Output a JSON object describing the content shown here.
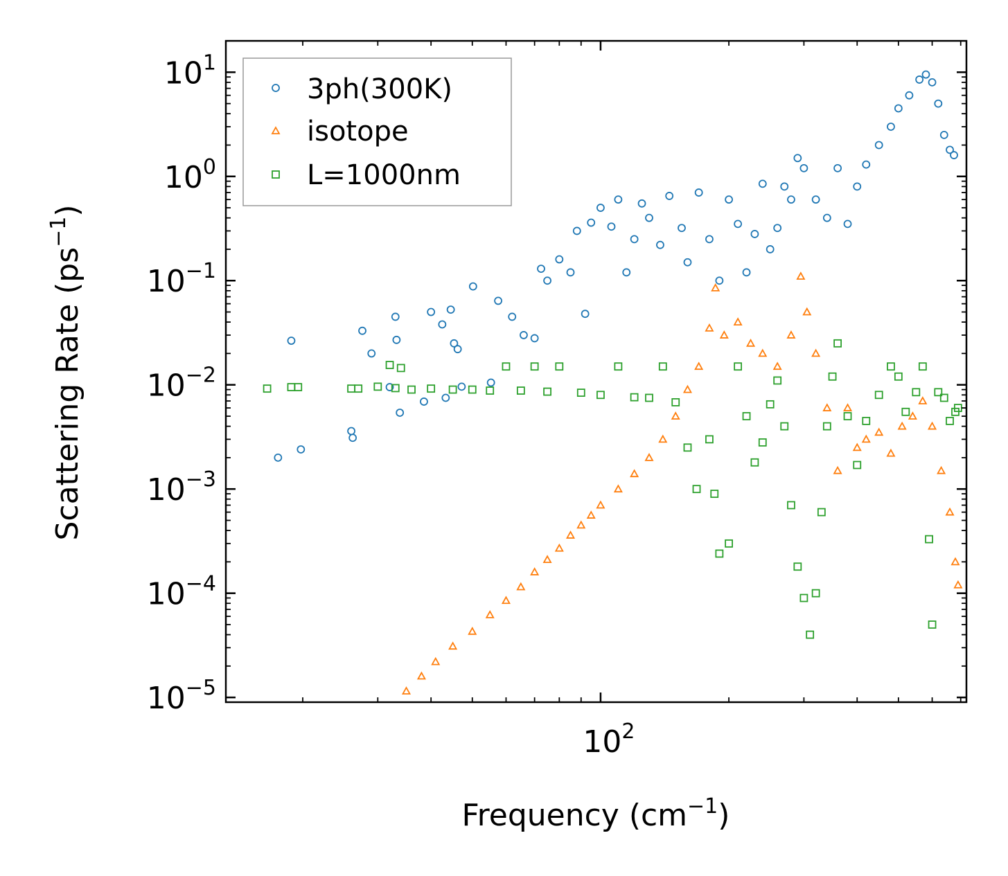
{
  "chart_data": {
    "type": "scatter",
    "title": "",
    "xlabel": "Frequency (cm",
    "xlabel_sup": "−1",
    "xlabel_end": ")",
    "ylabel": "Scattering Rate (ps",
    "ylabel_sup": "−1",
    "ylabel_end": ")",
    "xscale": "log",
    "yscale": "log",
    "xlim": [
      13.2,
      722
    ],
    "ylim": [
      9e-06,
      20
    ],
    "x_ticks": [
      {
        "value": 100,
        "base": "10",
        "exp": "2"
      }
    ],
    "y_ticks": [
      {
        "value": 10,
        "base": "10",
        "exp": "1"
      },
      {
        "value": 1,
        "base": "10",
        "exp": "0"
      },
      {
        "value": 0.1,
        "base": "10",
        "exp": "−1"
      },
      {
        "value": 0.01,
        "base": "10",
        "exp": "−2"
      },
      {
        "value": 0.001,
        "base": "10",
        "exp": "−3"
      },
      {
        "value": 0.0001,
        "base": "10",
        "exp": "−4"
      },
      {
        "value": 1e-05,
        "base": "10",
        "exp": "−5"
      }
    ],
    "legend_position": "upper-left",
    "series": [
      {
        "name": "3ph(300K)",
        "marker": "circle",
        "color": "#1f77b4",
        "points": [
          [
            17.5,
            0.002
          ],
          [
            18.8,
            0.0265
          ],
          [
            19.8,
            0.0024
          ],
          [
            26,
            0.0036
          ],
          [
            26.2,
            0.0031
          ],
          [
            27.6,
            0.033
          ],
          [
            29,
            0.02
          ],
          [
            32,
            0.0095
          ],
          [
            33,
            0.045
          ],
          [
            33.2,
            0.027
          ],
          [
            33.8,
            0.0054
          ],
          [
            38.5,
            0.0069
          ],
          [
            40,
            0.05
          ],
          [
            42.5,
            0.038
          ],
          [
            43.3,
            0.0075
          ],
          [
            44.5,
            0.0527
          ],
          [
            45.3,
            0.025
          ],
          [
            46.2,
            0.022
          ],
          [
            47.2,
            0.0096
          ],
          [
            50.2,
            0.088
          ],
          [
            55.3,
            0.0105
          ],
          [
            57.5,
            0.064
          ],
          [
            62,
            0.045
          ],
          [
            66,
            0.03
          ],
          [
            70,
            0.028
          ],
          [
            72.5,
            0.13
          ],
          [
            75,
            0.1
          ],
          [
            80,
            0.16
          ],
          [
            85,
            0.12
          ],
          [
            88,
            0.3
          ],
          [
            92,
            0.048
          ],
          [
            95,
            0.36
          ],
          [
            100,
            0.5
          ],
          [
            106,
            0.33
          ],
          [
            110,
            0.6
          ],
          [
            115,
            0.12
          ],
          [
            120,
            0.25
          ],
          [
            125,
            0.55
          ],
          [
            130,
            0.4
          ],
          [
            138,
            0.22
          ],
          [
            145,
            0.65
          ],
          [
            155,
            0.32
          ],
          [
            160,
            0.15
          ],
          [
            170,
            0.7
          ],
          [
            180,
            0.25
          ],
          [
            190,
            0.1
          ],
          [
            200,
            0.6
          ],
          [
            210,
            0.35
          ],
          [
            220,
            0.12
          ],
          [
            230,
            0.28
          ],
          [
            240,
            0.85
          ],
          [
            250,
            0.2
          ],
          [
            260,
            0.32
          ],
          [
            270,
            0.8
          ],
          [
            280,
            0.6
          ],
          [
            290,
            1.5
          ],
          [
            300,
            1.2
          ],
          [
            320,
            0.6
          ],
          [
            340,
            0.4
          ],
          [
            360,
            1.2
          ],
          [
            380,
            0.35
          ],
          [
            400,
            0.8
          ],
          [
            420,
            1.3
          ],
          [
            450,
            2
          ],
          [
            480,
            3
          ],
          [
            500,
            4.5
          ],
          [
            530,
            6
          ],
          [
            560,
            8.5
          ],
          [
            580,
            9.5
          ],
          [
            600,
            8
          ],
          [
            620,
            5
          ],
          [
            640,
            2.5
          ],
          [
            660,
            1.8
          ],
          [
            675,
            1.6
          ]
        ]
      },
      {
        "name": "isotope",
        "marker": "triangle",
        "color": "#ff7f0e",
        "points": [
          [
            35,
            1.15e-05
          ],
          [
            38,
            1.6e-05
          ],
          [
            41,
            2.2e-05
          ],
          [
            45,
            3.1e-05
          ],
          [
            50,
            4.3e-05
          ],
          [
            55,
            6.2e-05
          ],
          [
            60,
            8.5e-05
          ],
          [
            65,
            0.000115
          ],
          [
            70,
            0.00016
          ],
          [
            75,
            0.00021
          ],
          [
            80,
            0.00027
          ],
          [
            85,
            0.00036
          ],
          [
            90,
            0.00045
          ],
          [
            95,
            0.00056
          ],
          [
            100,
            0.0007
          ],
          [
            110,
            0.001
          ],
          [
            120,
            0.0014
          ],
          [
            130,
            0.002
          ],
          [
            140,
            0.003
          ],
          [
            150,
            0.005
          ],
          [
            160,
            0.009
          ],
          [
            170,
            0.015
          ],
          [
            180,
            0.035
          ],
          [
            186,
            0.085
          ],
          [
            195,
            0.03
          ],
          [
            210,
            0.04
          ],
          [
            225,
            0.025
          ],
          [
            240,
            0.02
          ],
          [
            260,
            0.015
          ],
          [
            280,
            0.03
          ],
          [
            295,
            0.11
          ],
          [
            305,
            0.05
          ],
          [
            320,
            0.02
          ],
          [
            340,
            0.006
          ],
          [
            360,
            0.0015
          ],
          [
            380,
            0.006
          ],
          [
            400,
            0.0025
          ],
          [
            420,
            0.003
          ],
          [
            450,
            0.0035
          ],
          [
            480,
            0.0022
          ],
          [
            510,
            0.004
          ],
          [
            540,
            0.005
          ],
          [
            570,
            0.007
          ],
          [
            600,
            0.004
          ],
          [
            630,
            0.0015
          ],
          [
            660,
            0.0006
          ],
          [
            680,
            0.0002
          ],
          [
            690,
            0.00012
          ]
        ]
      },
      {
        "name": "L=1000nm",
        "marker": "square",
        "color": "#2ca02c",
        "points": [
          [
            16.5,
            0.0092
          ],
          [
            18.8,
            0.0095
          ],
          [
            19.5,
            0.0095
          ],
          [
            26,
            0.0092
          ],
          [
            27,
            0.0092
          ],
          [
            30,
            0.0096
          ],
          [
            32,
            0.0155
          ],
          [
            33,
            0.0093
          ],
          [
            34,
            0.0145
          ],
          [
            36,
            0.009
          ],
          [
            40,
            0.0092
          ],
          [
            45,
            0.009
          ],
          [
            50,
            0.009
          ],
          [
            55,
            0.0088
          ],
          [
            60,
            0.015
          ],
          [
            65,
            0.0088
          ],
          [
            70,
            0.015
          ],
          [
            75,
            0.0086
          ],
          [
            80,
            0.015
          ],
          [
            90,
            0.0084
          ],
          [
            100,
            0.008
          ],
          [
            110,
            0.015
          ],
          [
            120,
            0.0076
          ],
          [
            130,
            0.0075
          ],
          [
            140,
            0.015
          ],
          [
            150,
            0.0068
          ],
          [
            160,
            0.0025
          ],
          [
            168,
            0.001
          ],
          [
            180,
            0.003
          ],
          [
            185,
            0.0009
          ],
          [
            190,
            0.00024
          ],
          [
            200,
            0.0003
          ],
          [
            210,
            0.015
          ],
          [
            220,
            0.005
          ],
          [
            230,
            0.0018
          ],
          [
            240,
            0.0028
          ],
          [
            250,
            0.0065
          ],
          [
            260,
            0.011
          ],
          [
            270,
            0.004
          ],
          [
            280,
            0.0007
          ],
          [
            290,
            0.00018
          ],
          [
            300,
            9e-05
          ],
          [
            310,
            4e-05
          ],
          [
            320,
            0.0001
          ],
          [
            330,
            0.0006
          ],
          [
            340,
            0.004
          ],
          [
            350,
            0.012
          ],
          [
            360,
            0.025
          ],
          [
            380,
            0.005
          ],
          [
            400,
            0.0017
          ],
          [
            420,
            0.0045
          ],
          [
            450,
            0.008
          ],
          [
            480,
            0.015
          ],
          [
            500,
            0.012
          ],
          [
            520,
            0.0055
          ],
          [
            550,
            0.0085
          ],
          [
            570,
            0.015
          ],
          [
            590,
            0.00033
          ],
          [
            600,
            5e-05
          ],
          [
            620,
            0.0085
          ],
          [
            640,
            0.0075
          ],
          [
            660,
            0.0045
          ],
          [
            680,
            0.0055
          ],
          [
            690,
            0.006
          ]
        ]
      }
    ]
  }
}
